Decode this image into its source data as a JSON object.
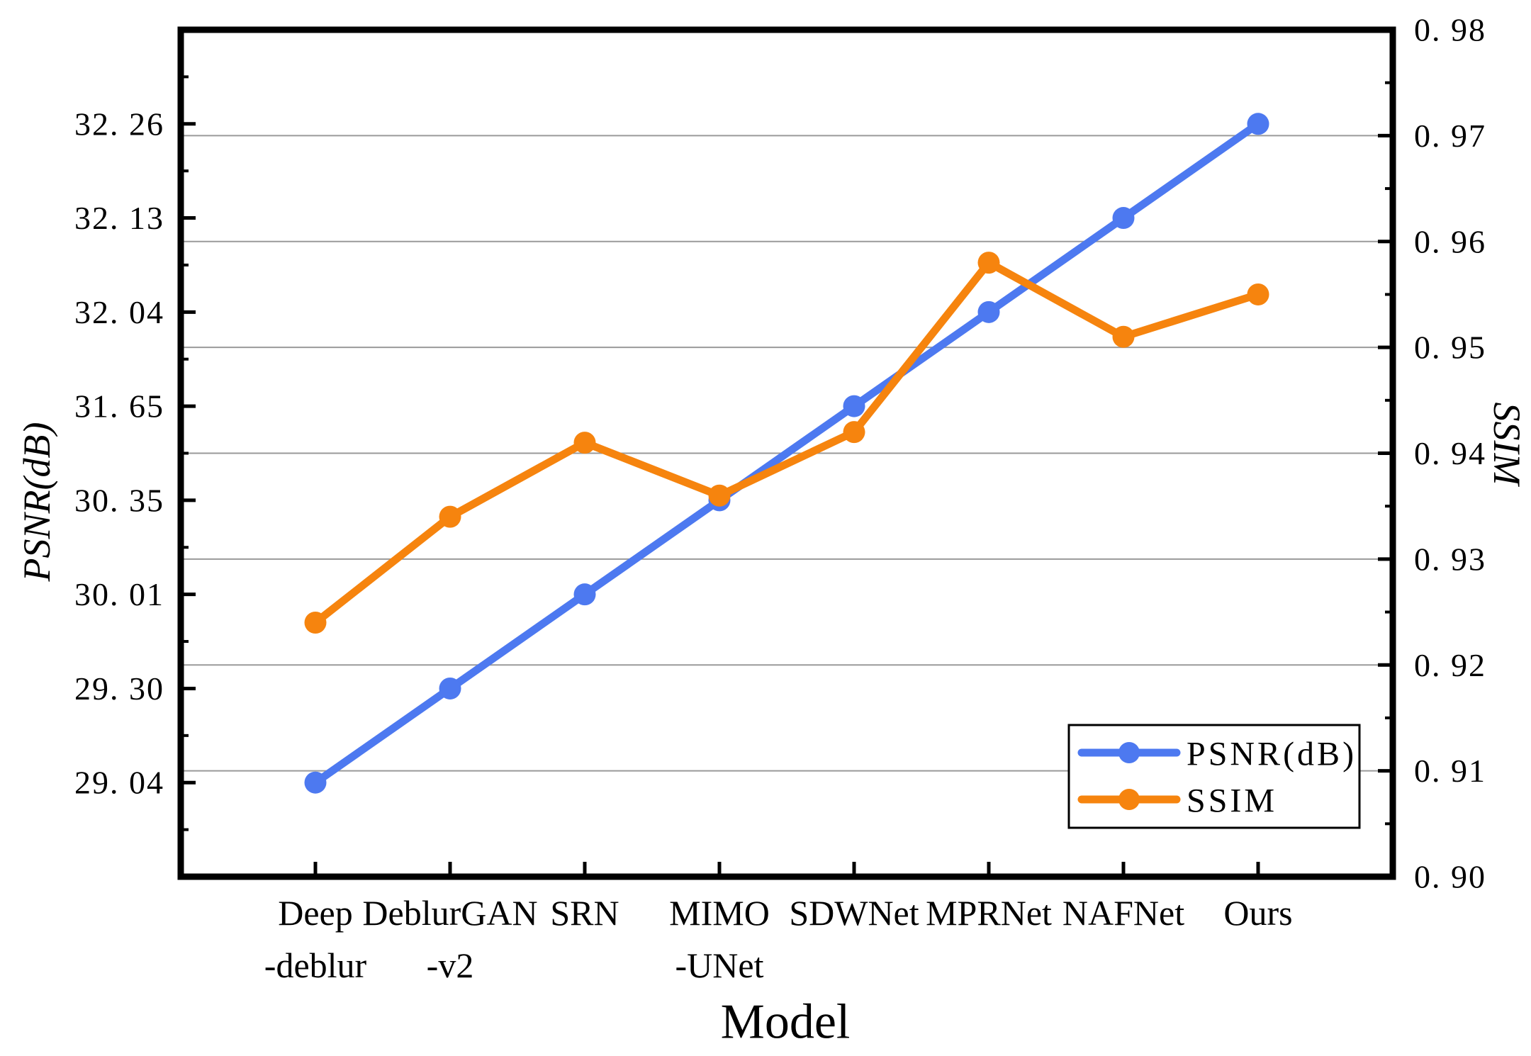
{
  "page": {
    "background": "#ffffff"
  },
  "chart_data": {
    "type": "line",
    "title": "",
    "xlabel": "Model",
    "categories": [
      "Deep-deblur",
      "DeblurGAN-v2",
      "SRN",
      "MIMO-UNet",
      "SDWNet",
      "MPRNet",
      "NAFNet",
      "Ours"
    ],
    "category_label_lines": [
      [
        "Deep",
        "-deblur"
      ],
      [
        "DeblurGAN",
        "-v2"
      ],
      [
        "SRN"
      ],
      [
        "MIMO",
        "-UNet"
      ],
      [
        "SDWNet"
      ],
      [
        "MPRNet"
      ],
      [
        "NAFNet"
      ],
      [
        "Ours"
      ]
    ],
    "series": [
      {
        "name": "PSNR(dB)",
        "axis": "left",
        "color": "#4d79f0",
        "marker": "circle",
        "values": [
          29.04,
          29.3,
          30.01,
          30.35,
          31.65,
          32.04,
          32.13,
          32.26
        ]
      },
      {
        "name": "SSIM",
        "axis": "right",
        "color": "#f6840e",
        "marker": "circle",
        "values": [
          0.924,
          0.934,
          0.941,
          0.936,
          0.942,
          0.958,
          0.951,
          0.955
        ]
      }
    ],
    "left_axis": {
      "label": "PSNR(dB)",
      "tick_display": [
        "32. 26",
        "32. 13",
        "32. 04",
        "31. 65",
        "30. 35",
        "30. 01",
        "29. 30",
        "29. 04"
      ],
      "tick_values": [
        32.26,
        32.13,
        32.04,
        31.65,
        30.35,
        30.01,
        29.3,
        29.04
      ],
      "spacing": "evenly spaced category slots, ticks inward, minor ticks at midpoints"
    },
    "right_axis": {
      "label": "SSIM",
      "min": 0.9,
      "max": 0.98,
      "major_step": 0.01,
      "minor_step": 0.005,
      "tick_display": [
        "0. 98",
        "0. 97",
        "0. 96",
        "0. 95",
        "0. 94",
        "0. 93",
        "0. 92",
        "0. 91",
        "0. 90"
      ]
    },
    "legend": {
      "position": "lower-right",
      "entries": [
        {
          "label": "PSNR(dB)",
          "color": "#4d79f0"
        },
        {
          "label": "SSIM",
          "color": "#f6840e"
        }
      ]
    },
    "grid": {
      "horizontal_at_right_ticks": [
        0.97,
        0.96,
        0.95,
        0.94,
        0.93,
        0.92,
        0.91
      ],
      "color": "#9a9a9a"
    },
    "colors": {
      "psnr_line": "#4d79f0",
      "ssim_line": "#f6840e",
      "axis": "#000000",
      "gridline": "#9a9a9a",
      "background": "#ffffff"
    }
  }
}
